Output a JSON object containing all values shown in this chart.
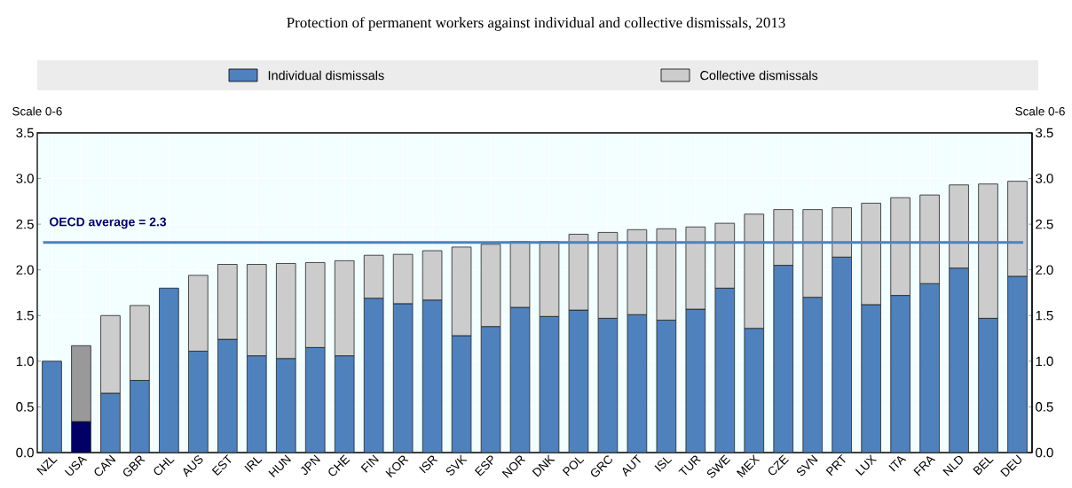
{
  "chart_data": {
    "type": "bar",
    "stacked": true,
    "title": "Protection of permanent workers against individual and collective dismissals, 2013",
    "ylabel": "Scale 0-6",
    "y2label": "Scale 0-6",
    "categories": [
      "NZL",
      "USA",
      "CAN",
      "GBR",
      "CHL",
      "AUS",
      "EST",
      "IRL",
      "HUN",
      "JPN",
      "CHE",
      "FIN",
      "KOR",
      "ISR",
      "SVK",
      "ESP",
      "NOR",
      "DNK",
      "POL",
      "GRC",
      "AUT",
      "ISL",
      "TUR",
      "SWE",
      "MEX",
      "CZE",
      "SVN",
      "PRT",
      "LUX",
      "ITA",
      "FRA",
      "NLD",
      "BEL",
      "DEU"
    ],
    "series": [
      {
        "name": "Individual dismissals",
        "color": "#4f81bd",
        "colors": [
          "#4f81bd",
          "#000066",
          "#4f81bd",
          "#4f81bd",
          "#4f81bd",
          "#4f81bd",
          "#4f81bd",
          "#4f81bd",
          "#4f81bd",
          "#4f81bd",
          "#4f81bd",
          "#4f81bd",
          "#4f81bd",
          "#4f81bd",
          "#4f81bd",
          "#4f81bd",
          "#4f81bd",
          "#4f81bd",
          "#4f81bd",
          "#4f81bd",
          "#4f81bd",
          "#4f81bd",
          "#4f81bd",
          "#4f81bd",
          "#4f81bd",
          "#4f81bd",
          "#4f81bd",
          "#4f81bd",
          "#4f81bd",
          "#4f81bd",
          "#4f81bd",
          "#4f81bd",
          "#4f81bd",
          "#4f81bd"
        ],
        "values": [
          1.0,
          0.34,
          0.65,
          0.79,
          1.8,
          1.11,
          1.24,
          1.06,
          1.03,
          1.15,
          1.06,
          1.69,
          1.63,
          1.67,
          1.28,
          1.38,
          1.59,
          1.49,
          1.56,
          1.47,
          1.51,
          1.45,
          1.57,
          1.8,
          1.36,
          2.05,
          1.7,
          2.14,
          1.62,
          1.72,
          1.85,
          2.02,
          1.47,
          1.93
        ]
      },
      {
        "name": "Collective dismissals",
        "color": "#cccccc",
        "colors": [
          "#cccccc",
          "#999999",
          "#cccccc",
          "#cccccc",
          "#cccccc",
          "#cccccc",
          "#cccccc",
          "#cccccc",
          "#cccccc",
          "#cccccc",
          "#cccccc",
          "#cccccc",
          "#cccccc",
          "#cccccc",
          "#cccccc",
          "#cccccc",
          "#cccccc",
          "#cccccc",
          "#cccccc",
          "#cccccc",
          "#cccccc",
          "#cccccc",
          "#cccccc",
          "#cccccc",
          "#cccccc",
          "#cccccc",
          "#cccccc",
          "#cccccc",
          "#cccccc",
          "#cccccc",
          "#cccccc",
          "#cccccc",
          "#cccccc",
          "#cccccc"
        ],
        "values": [
          null,
          0.83,
          0.85,
          0.82,
          null,
          0.83,
          0.82,
          1.0,
          1.04,
          0.93,
          1.04,
          0.47,
          0.54,
          0.54,
          0.97,
          0.9,
          0.72,
          0.82,
          0.83,
          0.94,
          0.93,
          1.0,
          0.9,
          0.71,
          1.25,
          0.61,
          0.96,
          0.54,
          1.11,
          1.07,
          0.97,
          0.91,
          1.47,
          1.04
        ]
      }
    ],
    "ylim": [
      0,
      3.5
    ],
    "yticks": [
      {
        "value": 0,
        "label": "0.0"
      },
      0.5,
      {
        "value": 1,
        "label": "1.0"
      },
      1.5,
      {
        "value": 2,
        "label": "2.0"
      },
      2.5,
      {
        "value": 3,
        "label": "3.0"
      },
      3.5
    ],
    "y2lim": [
      0,
      3.5
    ],
    "y2ticks": [
      {
        "value": 0,
        "label": "0.0"
      },
      0.5,
      {
        "value": 1,
        "label": "1.0"
      },
      1.5,
      {
        "value": 2,
        "label": "2.0"
      },
      2.5,
      {
        "value": 3,
        "label": "3.0"
      },
      3.5
    ],
    "ref_lines": [
      {
        "axis": "y",
        "value": 2.3,
        "label": "OECD average = 2.3",
        "color": "#4f81bd"
      }
    ],
    "grid": true,
    "legend": "top"
  }
}
